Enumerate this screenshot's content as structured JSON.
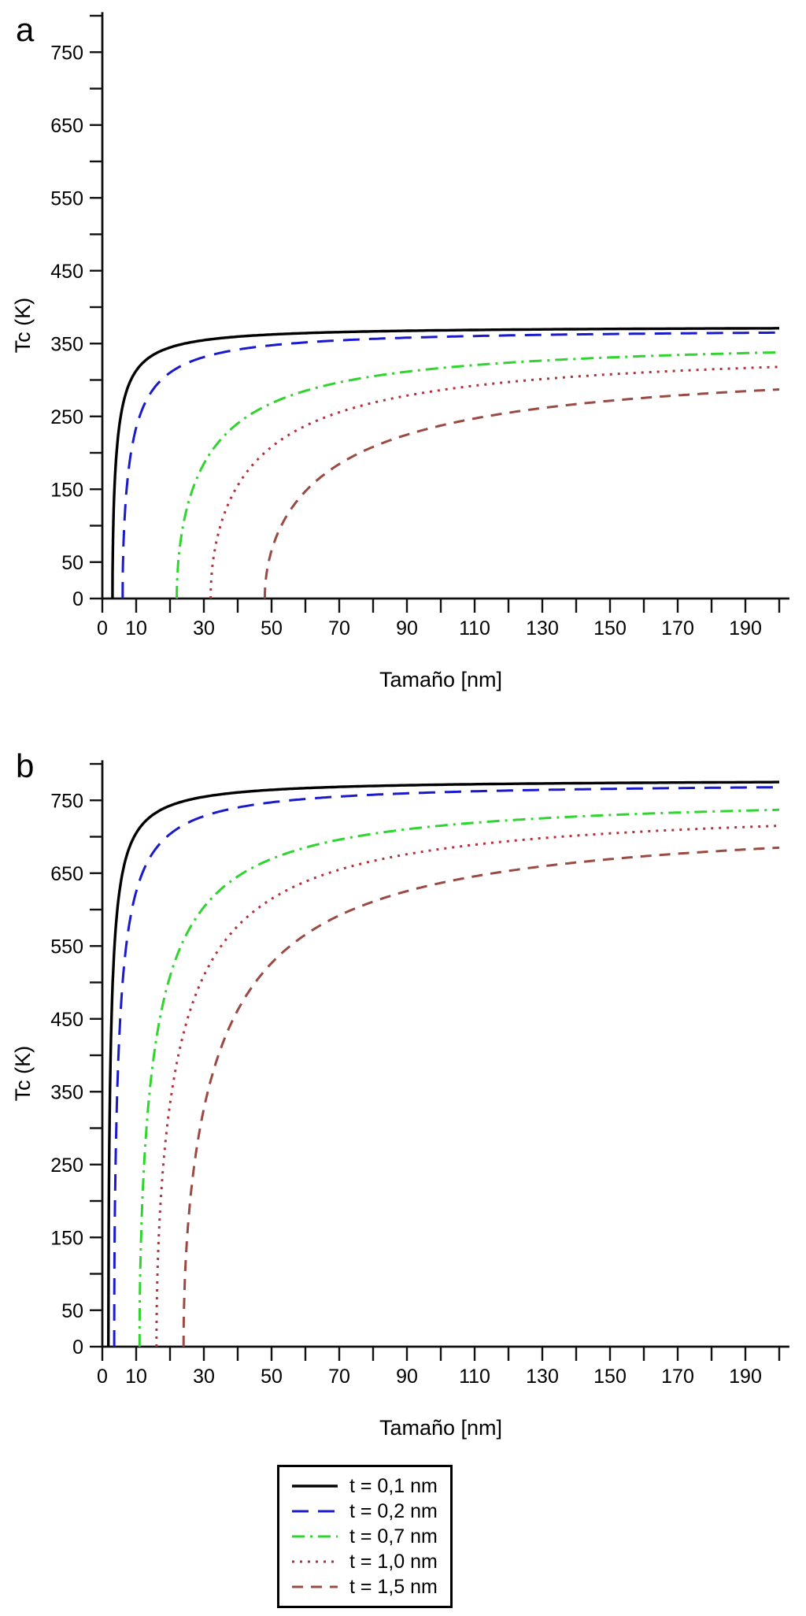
{
  "figure": {
    "background": "#ffffff",
    "legend": {
      "border_color": "#000000",
      "entries": [
        {
          "label": "t = 0,1 nm",
          "color": "#000000",
          "dash": "solid"
        },
        {
          "label": "t = 0,2 nm",
          "color": "#1a1acc",
          "dash": "long-dash"
        },
        {
          "label": "t = 0,7 nm",
          "color": "#2fd42f",
          "dash": "dash-dot"
        },
        {
          "label": "t = 1,0 nm",
          "color": "#b5303a",
          "dash": "dotted"
        },
        {
          "label": "t = 1,5 nm",
          "color": "#9a4a42",
          "dash": "dashed"
        }
      ]
    }
  },
  "chart_data": [
    {
      "type": "line",
      "panel_label": "a",
      "xlabel": "Tamaño [nm]",
      "ylabel": "Tc (K)",
      "xlim": [
        0,
        203
      ],
      "ylim": [
        0,
        805
      ],
      "x_tick_step": 10,
      "x_tick_max": 200,
      "y_tick_step": 50,
      "y_tick_max": 800,
      "x_labeled_ticks": [
        0,
        10,
        30,
        50,
        70,
        90,
        110,
        130,
        150,
        170,
        190
      ],
      "y_labeled_ticks": [
        0,
        50,
        150,
        250,
        350,
        450,
        550,
        650,
        750
      ],
      "grid": false,
      "series": [
        {
          "name": "t = 0,1 nm",
          "color": "#000000",
          "dash": "solid",
          "x_onset": 3,
          "y_at_200": 371,
          "exponent": 0.5,
          "points": [
            [
              3,
              0
            ],
            [
              5,
              236
            ],
            [
              10,
              313
            ],
            [
              20,
              345
            ],
            [
              30,
              355
            ],
            [
              40,
              360
            ],
            [
              60,
              364
            ],
            [
              80,
              367
            ],
            [
              100,
              368
            ],
            [
              140,
              370
            ],
            [
              200,
              371
            ]
          ]
        },
        {
          "name": "t = 0,2 nm",
          "color": "#1a1acc",
          "dash": "long-dash",
          "x_onset": 6,
          "y_at_200": 365,
          "exponent": 0.5,
          "points": [
            [
              6,
              0
            ],
            [
              8,
              185
            ],
            [
              10,
              234
            ],
            [
              15,
              287
            ],
            [
              20,
              310
            ],
            [
              30,
              331
            ],
            [
              40,
              342
            ],
            [
              60,
              352
            ],
            [
              80,
              356
            ],
            [
              100,
              359
            ],
            [
              140,
              363
            ],
            [
              200,
              365
            ]
          ]
        },
        {
          "name": "t = 0,7 nm",
          "color": "#2fd42f",
          "dash": "dash-dot",
          "x_onset": 22,
          "y_at_200": 338,
          "exponent": 0.5,
          "points": [
            [
              22,
              0
            ],
            [
              25,
              124
            ],
            [
              30,
              185
            ],
            [
              40,
              240
            ],
            [
              50,
              268
            ],
            [
              60,
              285
            ],
            [
              80,
              305
            ],
            [
              100,
              316
            ],
            [
              120,
              324
            ],
            [
              140,
              329
            ],
            [
              160,
              333
            ],
            [
              180,
              336
            ],
            [
              200,
              338
            ]
          ]
        },
        {
          "name": "t = 1,0 nm",
          "color": "#b5303a",
          "dash": "dotted",
          "x_onset": 32,
          "y_at_200": 318,
          "exponent": 0.5,
          "points": [
            [
              32,
              0
            ],
            [
              35,
              102
            ],
            [
              40,
              155
            ],
            [
              50,
              208
            ],
            [
              60,
              237
            ],
            [
              80,
              269
            ],
            [
              100,
              286
            ],
            [
              120,
              297
            ],
            [
              140,
              305
            ],
            [
              160,
              310
            ],
            [
              180,
              315
            ],
            [
              200,
              318
            ]
          ]
        },
        {
          "name": "t = 1,5 nm",
          "color": "#9a4a42",
          "dash": "dashed",
          "x_onset": 48,
          "y_at_200": 287,
          "exponent": 0.5,
          "points": [
            [
              48,
              0
            ],
            [
              52,
              91
            ],
            [
              60,
              147
            ],
            [
              70,
              185
            ],
            [
              80,
              208
            ],
            [
              100,
              237
            ],
            [
              120,
              255
            ],
            [
              140,
              267
            ],
            [
              160,
              275
            ],
            [
              180,
              282
            ],
            [
              200,
              287
            ]
          ]
        }
      ]
    },
    {
      "type": "line",
      "panel_label": "b",
      "xlabel": "Tamaño [nm]",
      "ylabel": "Tc (K)",
      "xlim": [
        0,
        203
      ],
      "ylim": [
        0,
        805
      ],
      "x_tick_step": 10,
      "x_tick_max": 200,
      "y_tick_step": 50,
      "y_tick_max": 800,
      "x_labeled_ticks": [
        0,
        10,
        30,
        50,
        70,
        90,
        110,
        130,
        150,
        170,
        190
      ],
      "y_labeled_ticks": [
        0,
        50,
        150,
        250,
        350,
        450,
        550,
        650,
        750
      ],
      "grid": false,
      "series": [
        {
          "name": "t = 0,1 nm",
          "color": "#000000",
          "dash": "solid",
          "x_onset": 1.8,
          "y_at_200": 775,
          "exponent": 0.5,
          "points": [
            [
              1.8,
              0
            ],
            [
              3,
              492
            ],
            [
              5,
              623
            ],
            [
              10,
              705
            ],
            [
              20,
              743
            ],
            [
              40,
              761
            ],
            [
              60,
              767
            ],
            [
              100,
              771
            ],
            [
              150,
              774
            ],
            [
              200,
              775
            ]
          ]
        },
        {
          "name": "t = 0,2 nm",
          "color": "#1a1acc",
          "dash": "long-dash",
          "x_onset": 3.5,
          "y_at_200": 768,
          "exponent": 0.5,
          "points": [
            [
              3.5,
              0
            ],
            [
              5,
              424
            ],
            [
              7,
              548
            ],
            [
              10,
              625
            ],
            [
              15,
              678
            ],
            [
              20,
              704
            ],
            [
              30,
              728
            ],
            [
              50,
              747
            ],
            [
              80,
              758
            ],
            [
              120,
              763
            ],
            [
              200,
              768
            ]
          ]
        },
        {
          "name": "t = 0,7 nm",
          "color": "#2fd42f",
          "dash": "dash-dot",
          "x_onset": 11,
          "y_at_200": 737,
          "exponent": 0.5,
          "points": [
            [
              11,
              0
            ],
            [
              13,
              297
            ],
            [
              15,
              391
            ],
            [
              20,
              509
            ],
            [
              25,
              567
            ],
            [
              30,
              603
            ],
            [
              40,
              646
            ],
            [
              60,
              685
            ],
            [
              80,
              704
            ],
            [
              100,
              715
            ],
            [
              140,
              728
            ],
            [
              200,
              737
            ]
          ]
        },
        {
          "name": "t = 1,0 nm",
          "color": "#b5303a",
          "dash": "dotted",
          "x_onset": 16,
          "y_at_200": 715,
          "exponent": 0.5,
          "points": [
            [
              16,
              0
            ],
            [
              18,
              248
            ],
            [
              20,
              333
            ],
            [
              25,
              447
            ],
            [
              30,
              509
            ],
            [
              40,
              577
            ],
            [
              50,
              615
            ],
            [
              70,
              655
            ],
            [
              100,
              683
            ],
            [
              140,
              702
            ],
            [
              200,
              715
            ]
          ]
        },
        {
          "name": "t = 1,5 nm",
          "color": "#9a4a42",
          "dash": "dashed",
          "x_onset": 24,
          "y_at_200": 685,
          "exponent": 0.5,
          "points": [
            [
              24,
              0
            ],
            [
              27,
              243
            ],
            [
              30,
              327
            ],
            [
              40,
              462
            ],
            [
              50,
              527
            ],
            [
              60,
              566
            ],
            [
              80,
              611
            ],
            [
              100,
              637
            ],
            [
              140,
              665
            ],
            [
              200,
              685
            ]
          ]
        }
      ]
    }
  ]
}
